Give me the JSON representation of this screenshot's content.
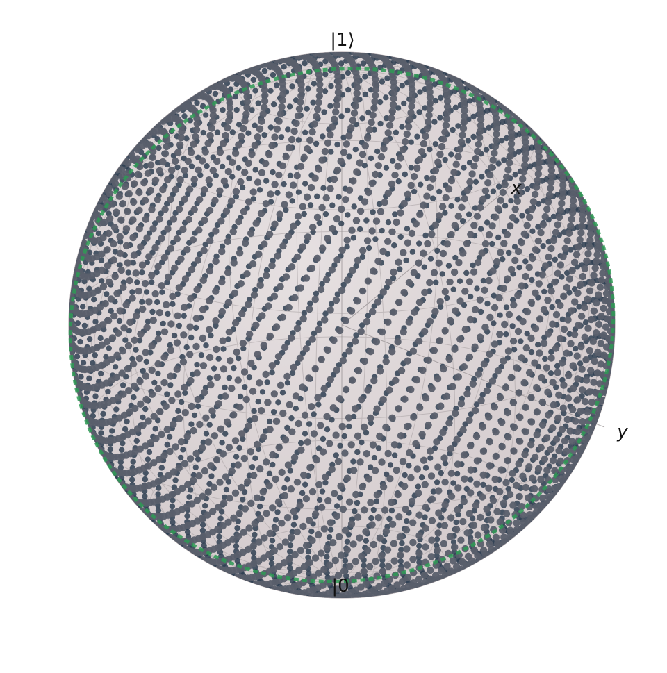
{
  "labels": {
    "top": "|1⟩",
    "bottom": "|0",
    "x_axis": "x",
    "y_axis": "y"
  },
  "colors": {
    "sphere_fill": "#ddd5d6",
    "sphere_edge": "#b9b0b2",
    "wireframe": "#a7a0a2",
    "point_dark": "#2f3f52",
    "point_mid": "#4a5262",
    "point_light": "#5a5f6c",
    "trajectory": "#2e9a55"
  },
  "icons": {
    "sphere": "bloch-sphere"
  }
}
